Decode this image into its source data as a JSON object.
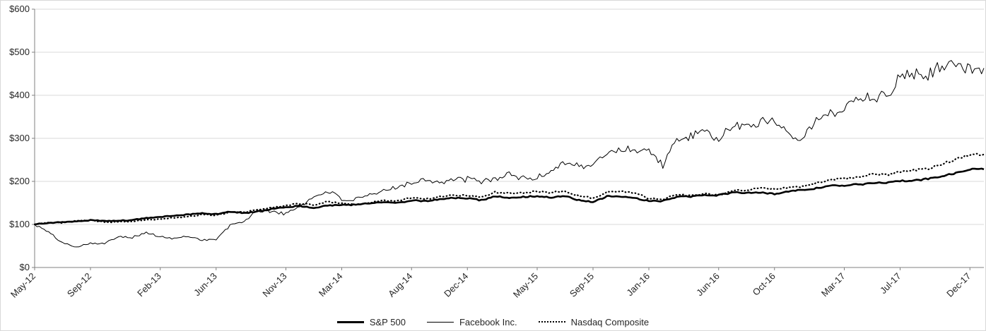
{
  "chart_data": {
    "type": "line",
    "title": "",
    "xlabel": "",
    "ylabel": "",
    "ylim": [
      0,
      600
    ],
    "ytick_step": 100,
    "ytick_labels": [
      "$0",
      "$100",
      "$200",
      "$300",
      "$400",
      "$500",
      "$600"
    ],
    "xtick_labels": [
      "May-12",
      "Sep-12",
      "Feb-13",
      "Jun-13",
      "Nov-13",
      "Mar-14",
      "Aug-14",
      "Dec-14",
      "May-15",
      "Sep-15",
      "Jan-16",
      "Jun-16",
      "Oct-16",
      "Mar-17",
      "Jul-17",
      "Dec-17"
    ],
    "xtick_month_index": [
      0,
      4,
      9,
      13,
      18,
      22,
      27,
      31,
      36,
      40,
      44,
      49,
      53,
      58,
      62,
      67
    ],
    "months": [
      "May-12",
      "Jun-12",
      "Jul-12",
      "Aug-12",
      "Sep-12",
      "Oct-12",
      "Nov-12",
      "Dec-12",
      "Jan-13",
      "Feb-13",
      "Mar-13",
      "Apr-13",
      "May-13",
      "Jun-13",
      "Jul-13",
      "Aug-13",
      "Sep-13",
      "Oct-13",
      "Nov-13",
      "Dec-13",
      "Jan-14",
      "Feb-14",
      "Mar-14",
      "Apr-14",
      "May-14",
      "Jun-14",
      "Jul-14",
      "Aug-14",
      "Sep-14",
      "Oct-14",
      "Nov-14",
      "Dec-14",
      "Jan-15",
      "Feb-15",
      "Mar-15",
      "Apr-15",
      "May-15",
      "Jun-15",
      "Jul-15",
      "Aug-15",
      "Sep-15",
      "Oct-15",
      "Nov-15",
      "Dec-15",
      "Jan-16",
      "Feb-16",
      "Mar-16",
      "Apr-16",
      "May-16",
      "Jun-16",
      "Jul-16",
      "Aug-16",
      "Sep-16",
      "Oct-16",
      "Nov-16",
      "Dec-16",
      "Jan-17",
      "Feb-17",
      "Mar-17",
      "Apr-17",
      "May-17",
      "Jun-17",
      "Jul-17",
      "Aug-17",
      "Sep-17",
      "Oct-17",
      "Nov-17",
      "Dec-17"
    ],
    "series": [
      {
        "name": "Facebook Inc.",
        "style": "thin",
        "values": [
          100,
          82,
          57,
          48,
          57,
          55,
          73,
          70,
          81,
          71,
          67,
          73,
          64,
          65,
          97,
          108,
          132,
          131,
          124,
          143,
          163,
          179,
          158,
          157,
          166,
          177,
          190,
          196,
          207,
          197,
          203,
          205,
          199,
          207,
          216,
          207,
          208,
          225,
          247,
          235,
          236,
          268,
          274,
          275,
          272,
          238,
          295,
          305,
          312,
          300,
          326,
          331,
          337,
          344,
          312,
          302,
          342,
          355,
          373,
          395,
          398,
          396,
          444,
          452,
          449,
          473,
          465,
          463
        ]
      },
      {
        "name": "Nasdaq Composite",
        "style": "dotted",
        "values": [
          100,
          104,
          104,
          109,
          110,
          105,
          106,
          107,
          111,
          112,
          116,
          118,
          123,
          121,
          129,
          128,
          134,
          139,
          144,
          148,
          146,
          153,
          149,
          146,
          150,
          156,
          155,
          162,
          159,
          164,
          169,
          167,
          164,
          175,
          173,
          174,
          177,
          174,
          178,
          166,
          161,
          175,
          177,
          174,
          160,
          159,
          170,
          166,
          172,
          168,
          179,
          180,
          184,
          182,
          186,
          188,
          196,
          203,
          206,
          211,
          217,
          215,
          222,
          226,
          230,
          240,
          252,
          263
        ]
      },
      {
        "name": "S&P 500",
        "style": "thick",
        "values": [
          100,
          104,
          105,
          107,
          110,
          108,
          109,
          110,
          115,
          117,
          121,
          123,
          126,
          124,
          130,
          126,
          130,
          136,
          140,
          143,
          138,
          144,
          145,
          146,
          149,
          152,
          150,
          156,
          154,
          158,
          162,
          161,
          156,
          165,
          162,
          164,
          166,
          163,
          166,
          156,
          152,
          165,
          165,
          162,
          154,
          154,
          164,
          165,
          168,
          168,
          174,
          174,
          174,
          171,
          177,
          181,
          184,
          191,
          191,
          193,
          195,
          197,
          201,
          202,
          206,
          212,
          219,
          228
        ]
      }
    ],
    "legend": [
      {
        "label": "S&P 500",
        "style": "thick"
      },
      {
        "label": "Facebook Inc.",
        "style": "thin"
      },
      {
        "label": "Nasdaq Composite",
        "style": "dotted"
      }
    ],
    "legend_position": "bottom-center",
    "grid": "horizontal",
    "colors": {
      "line": "#000000",
      "grid": "#d9d9d9",
      "axis": "#808080",
      "text": "#262626",
      "background": "#ffffff"
    }
  }
}
